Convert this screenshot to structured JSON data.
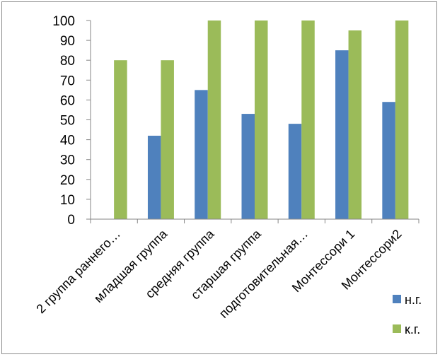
{
  "chart_data": {
    "type": "bar",
    "title": "",
    "xlabel": "",
    "ylabel": "",
    "ylim": [
      0,
      100
    ],
    "yticks": [
      0,
      10,
      20,
      30,
      40,
      50,
      60,
      70,
      80,
      90,
      100
    ],
    "grid": false,
    "legend_position": "right",
    "categories": [
      "2 группа раннего…",
      "младшая группа",
      "средняя группа",
      "старшая группа",
      "подготовительная…",
      "Монтессори 1",
      "Монтессори2"
    ],
    "series": [
      {
        "name": "н.г.",
        "color": "#4f81bd",
        "values": [
          0,
          42,
          65,
          53,
          48,
          85,
          59
        ]
      },
      {
        "name": "к.г.",
        "color": "#9bbb59",
        "values": [
          80,
          80,
          100,
          100,
          100,
          95,
          100
        ]
      }
    ]
  }
}
